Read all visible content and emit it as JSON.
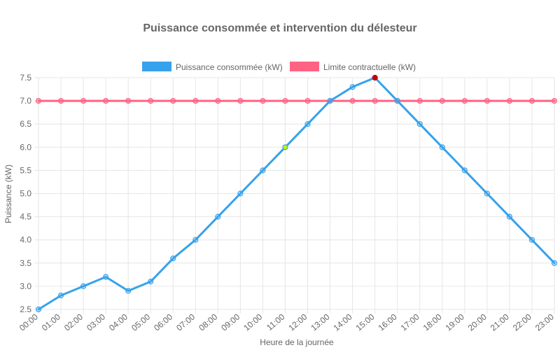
{
  "chart_data": {
    "type": "line",
    "title": "Puissance consommée et intervention du délesteur",
    "xlabel": "Heure de la journée",
    "ylabel": "Puissance (kW)",
    "ylim": [
      2.5,
      7.5
    ],
    "yticks": [
      "2.5",
      "3.0",
      "3.5",
      "4.0",
      "4.5",
      "5.0",
      "5.5",
      "6.0",
      "6.5",
      "7.0",
      "7.5"
    ],
    "grid": true,
    "legend_position": "top",
    "categories": [
      "00:00",
      "01:00",
      "02:00",
      "03:00",
      "04:00",
      "05:00",
      "06:00",
      "07:00",
      "08:00",
      "09:00",
      "10:00",
      "11:00",
      "12:00",
      "13:00",
      "14:00",
      "15:00",
      "16:00",
      "17:00",
      "18:00",
      "19:00",
      "20:00",
      "21:00",
      "22:00",
      "23:00"
    ],
    "series": [
      {
        "name": "Puissance consommée (kW)",
        "color": "#36a2eb",
        "values": [
          2.5,
          2.8,
          3.0,
          3.2,
          2.9,
          3.1,
          3.6,
          4.0,
          4.5,
          5.0,
          5.5,
          6.0,
          6.5,
          7.0,
          7.3,
          7.5,
          7.0,
          6.5,
          6.0,
          5.5,
          5.0,
          4.5,
          4.0,
          3.5
        ],
        "highlighted_points": [
          {
            "index": 11,
            "color": "#c8f000"
          },
          {
            "index": 15,
            "color": "#cc0000"
          }
        ]
      },
      {
        "name": "Limite contractuelle (kW)",
        "color": "#ff6384",
        "values": [
          7.0,
          7.0,
          7.0,
          7.0,
          7.0,
          7.0,
          7.0,
          7.0,
          7.0,
          7.0,
          7.0,
          7.0,
          7.0,
          7.0,
          7.0,
          7.0,
          7.0,
          7.0,
          7.0,
          7.0,
          7.0,
          7.0,
          7.0,
          7.0
        ]
      }
    ]
  }
}
